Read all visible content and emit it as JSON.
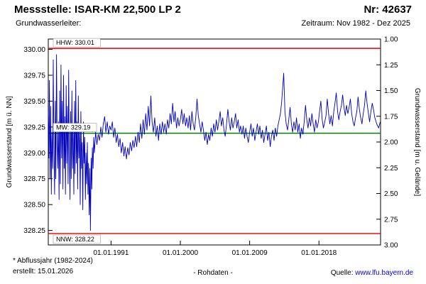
{
  "header": {
    "title": "Messstelle: ISAR-KM 22,500 LP 2",
    "number_label": "Nr: 42637",
    "aquifer_label": "Grundwasserleiter:",
    "period_label": "Zeitraum: Nov 1982 - Dez 2025"
  },
  "footer": {
    "note": "* Abflussjahr (1982-2024)",
    "created": "erstellt: 15.01.2026",
    "center": "- Rohdaten -",
    "source_label": "Quelle: ",
    "source_link": "www.lfu.bayern.de"
  },
  "colors": {
    "series": "#0000bb",
    "extreme_line": "#e00000",
    "mean_line": "#008000",
    "link": "#0000dd",
    "border": "#000000"
  },
  "chart_data": {
    "type": "line",
    "title": "",
    "xlabel": "",
    "ylabel_left": "Grundwasserstand [m ü. NN]",
    "ylabel_right": "Grundwasserstand [m u. Gelände]",
    "xlim": [
      1982.85,
      2026.0
    ],
    "ylim_left": [
      328.11,
      330.1
    ],
    "ylim_right_top": 1.0,
    "ylim_right_bottom": 3.0,
    "grid": false,
    "legend": "none",
    "yticks_left": [
      {
        "v": 330.0,
        "label": "330.00"
      },
      {
        "v": 329.75,
        "label": "329.75"
      },
      {
        "v": 329.5,
        "label": "329.50"
      },
      {
        "v": 329.25,
        "label": "329.25"
      },
      {
        "v": 329.0,
        "label": "329.00"
      },
      {
        "v": 328.75,
        "label": "328.75"
      },
      {
        "v": 328.5,
        "label": "328.50"
      },
      {
        "v": 328.25,
        "label": "328.25"
      }
    ],
    "yticks_right": [
      {
        "v": 1.0,
        "label": "1.00"
      },
      {
        "v": 1.25,
        "label": "1.25"
      },
      {
        "v": 1.5,
        "label": "1.50"
      },
      {
        "v": 1.75,
        "label": "1.75"
      },
      {
        "v": 2.0,
        "label": "2.00"
      },
      {
        "v": 2.25,
        "label": "2.25"
      },
      {
        "v": 2.5,
        "label": "2.50"
      },
      {
        "v": 2.75,
        "label": "2.75"
      },
      {
        "v": 3.0,
        "label": "3.00"
      }
    ],
    "xticks": [
      {
        "v": 1991.0,
        "label": "01.01.1991"
      },
      {
        "v": 2000.0,
        "label": "01.01.2000"
      },
      {
        "v": 2009.0,
        "label": "01.01.2009"
      },
      {
        "v": 2018.0,
        "label": "01.01.2018"
      }
    ],
    "ref_lines": [
      {
        "label": "HHW: 330.01",
        "v": 330.01,
        "color": "#e00000",
        "label_pos": "above"
      },
      {
        "label": "MW: 329.19",
        "v": 329.19,
        "color": "#008000",
        "label_pos": "above"
      },
      {
        "label": "NNW: 328.22",
        "v": 328.22,
        "color": "#e00000",
        "label_pos": "below"
      }
    ],
    "series_name": "Rohdaten",
    "points": [
      [
        1982.85,
        329.4
      ],
      [
        1982.92,
        328.95
      ],
      [
        1983.0,
        329.7
      ],
      [
        1983.08,
        328.75
      ],
      [
        1983.17,
        329.45
      ],
      [
        1983.25,
        328.6
      ],
      [
        1983.33,
        329.2
      ],
      [
        1983.42,
        328.85
      ],
      [
        1983.5,
        329.9
      ],
      [
        1983.58,
        329.05
      ],
      [
        1983.67,
        328.6
      ],
      [
        1983.75,
        329.5
      ],
      [
        1983.83,
        328.75
      ],
      [
        1983.92,
        329.95
      ],
      [
        1984.0,
        329.1
      ],
      [
        1984.08,
        328.85
      ],
      [
        1984.17,
        329.3
      ],
      [
        1984.25,
        328.55
      ],
      [
        1984.33,
        329.6
      ],
      [
        1984.42,
        328.7
      ],
      [
        1984.5,
        329.85
      ],
      [
        1984.58,
        328.95
      ],
      [
        1984.67,
        329.5
      ],
      [
        1984.75,
        328.65
      ],
      [
        1984.83,
        329.75
      ],
      [
        1984.92,
        328.85
      ],
      [
        1985.0,
        329.35
      ],
      [
        1985.08,
        328.6
      ],
      [
        1985.17,
        329.65
      ],
      [
        1985.25,
        328.9
      ],
      [
        1985.33,
        329.45
      ],
      [
        1985.42,
        328.7
      ],
      [
        1985.5,
        329.8
      ],
      [
        1985.58,
        329.0
      ],
      [
        1985.67,
        328.55
      ],
      [
        1985.75,
        329.4
      ],
      [
        1985.83,
        328.75
      ],
      [
        1985.92,
        329.6
      ],
      [
        1986.0,
        328.85
      ],
      [
        1986.08,
        329.25
      ],
      [
        1986.17,
        328.6
      ],
      [
        1986.25,
        329.5
      ],
      [
        1986.33,
        328.8
      ],
      [
        1986.42,
        329.7
      ],
      [
        1986.5,
        328.9
      ],
      [
        1986.58,
        329.3
      ],
      [
        1986.67,
        328.65
      ],
      [
        1986.75,
        329.55
      ],
      [
        1986.83,
        328.95
      ],
      [
        1986.92,
        329.2
      ],
      [
        1987.0,
        328.5
      ],
      [
        1987.08,
        329.4
      ],
      [
        1987.17,
        328.85
      ],
      [
        1987.25,
        329.1
      ],
      [
        1987.33,
        328.45
      ],
      [
        1987.42,
        329.3
      ],
      [
        1987.5,
        328.9
      ],
      [
        1987.58,
        329.15
      ],
      [
        1987.67,
        328.55
      ],
      [
        1987.75,
        329.0
      ],
      [
        1987.83,
        328.7
      ],
      [
        1987.92,
        329.1
      ],
      [
        1988.0,
        328.6
      ],
      [
        1988.08,
        328.9
      ],
      [
        1988.17,
        328.4
      ],
      [
        1988.25,
        328.85
      ],
      [
        1988.33,
        328.25
      ],
      [
        1988.42,
        328.95
      ],
      [
        1988.5,
        328.65
      ],
      [
        1988.58,
        329.05
      ],
      [
        1988.67,
        328.85
      ],
      [
        1988.75,
        329.15
      ],
      [
        1988.83,
        329.0
      ],
      [
        1988.92,
        329.1
      ],
      [
        1989.0,
        329.2
      ],
      [
        1989.17,
        329.08
      ],
      [
        1989.33,
        329.18
      ],
      [
        1989.5,
        329.12
      ],
      [
        1989.67,
        329.25
      ],
      [
        1989.83,
        329.15
      ],
      [
        1990.0,
        329.28
      ],
      [
        1990.17,
        329.35
      ],
      [
        1990.33,
        329.2
      ],
      [
        1990.5,
        329.3
      ],
      [
        1990.67,
        329.18
      ],
      [
        1990.83,
        329.26
      ],
      [
        1991.0,
        329.22
      ],
      [
        1991.17,
        329.3
      ],
      [
        1991.33,
        329.15
      ],
      [
        1991.5,
        329.24
      ],
      [
        1991.67,
        329.1
      ],
      [
        1991.83,
        329.18
      ],
      [
        1992.0,
        329.06
      ],
      [
        1992.17,
        329.14
      ],
      [
        1992.33,
        329.0
      ],
      [
        1992.5,
        329.1
      ],
      [
        1992.67,
        328.97
      ],
      [
        1992.83,
        329.06
      ],
      [
        1993.0,
        328.94
      ],
      [
        1993.17,
        329.05
      ],
      [
        1993.33,
        328.98
      ],
      [
        1993.5,
        329.1
      ],
      [
        1993.67,
        329.02
      ],
      [
        1993.83,
        329.12
      ],
      [
        1994.0,
        329.05
      ],
      [
        1994.17,
        329.16
      ],
      [
        1994.33,
        329.06
      ],
      [
        1994.5,
        329.2
      ],
      [
        1994.67,
        329.1
      ],
      [
        1994.83,
        329.28
      ],
      [
        1995.0,
        329.14
      ],
      [
        1995.17,
        329.32
      ],
      [
        1995.33,
        329.18
      ],
      [
        1995.5,
        329.38
      ],
      [
        1995.67,
        329.22
      ],
      [
        1995.83,
        329.45
      ],
      [
        1996.0,
        329.26
      ],
      [
        1996.17,
        329.55
      ],
      [
        1996.33,
        329.3
      ],
      [
        1996.5,
        329.2
      ],
      [
        1996.67,
        329.34
      ],
      [
        1996.83,
        329.16
      ],
      [
        1997.0,
        329.26
      ],
      [
        1997.17,
        329.12
      ],
      [
        1997.33,
        329.28
      ],
      [
        1997.5,
        329.18
      ],
      [
        1997.67,
        329.3
      ],
      [
        1997.83,
        329.2
      ],
      [
        1998.0,
        329.28
      ],
      [
        1998.17,
        329.18
      ],
      [
        1998.33,
        329.32
      ],
      [
        1998.5,
        329.24
      ],
      [
        1998.67,
        329.38
      ],
      [
        1998.83,
        329.28
      ],
      [
        1999.0,
        329.48
      ],
      [
        1999.17,
        329.3
      ],
      [
        1999.33,
        329.4
      ],
      [
        1999.5,
        329.24
      ],
      [
        1999.67,
        329.34
      ],
      [
        1999.83,
        329.26
      ],
      [
        2000.0,
        329.32
      ],
      [
        2000.17,
        329.42
      ],
      [
        2000.33,
        329.28
      ],
      [
        2000.5,
        329.38
      ],
      [
        2000.67,
        329.26
      ],
      [
        2000.83,
        329.34
      ],
      [
        2001.0,
        329.24
      ],
      [
        2001.17,
        329.36
      ],
      [
        2001.33,
        329.22
      ],
      [
        2001.5,
        329.4
      ],
      [
        2001.67,
        329.28
      ],
      [
        2001.83,
        329.22
      ],
      [
        2002.0,
        329.34
      ],
      [
        2002.17,
        329.52
      ],
      [
        2002.33,
        329.36
      ],
      [
        2002.5,
        329.28
      ],
      [
        2002.67,
        329.2
      ],
      [
        2002.83,
        329.3
      ],
      [
        2003.0,
        329.22
      ],
      [
        2003.17,
        329.12
      ],
      [
        2003.33,
        329.2
      ],
      [
        2003.5,
        329.08
      ],
      [
        2003.67,
        329.18
      ],
      [
        2003.83,
        329.12
      ],
      [
        2004.0,
        329.24
      ],
      [
        2004.17,
        329.16
      ],
      [
        2004.33,
        329.28
      ],
      [
        2004.5,
        329.2
      ],
      [
        2004.67,
        329.32
      ],
      [
        2004.83,
        329.22
      ],
      [
        2005.0,
        329.3
      ],
      [
        2005.17,
        329.4
      ],
      [
        2005.33,
        329.26
      ],
      [
        2005.5,
        329.34
      ],
      [
        2005.67,
        329.22
      ],
      [
        2005.83,
        329.16
      ],
      [
        2006.0,
        329.28
      ],
      [
        2006.17,
        329.42
      ],
      [
        2006.33,
        329.3
      ],
      [
        2006.5,
        329.22
      ],
      [
        2006.67,
        329.34
      ],
      [
        2006.83,
        329.24
      ],
      [
        2007.0,
        329.3
      ],
      [
        2007.17,
        329.38
      ],
      [
        2007.33,
        329.24
      ],
      [
        2007.5,
        329.32
      ],
      [
        2007.67,
        329.2
      ],
      [
        2007.83,
        329.26
      ],
      [
        2008.0,
        329.18
      ],
      [
        2008.17,
        329.26
      ],
      [
        2008.33,
        329.14
      ],
      [
        2008.5,
        329.24
      ],
      [
        2008.67,
        329.16
      ],
      [
        2008.83,
        329.1
      ],
      [
        2009.0,
        329.2
      ],
      [
        2009.17,
        329.28
      ],
      [
        2009.33,
        329.16
      ],
      [
        2009.5,
        329.24
      ],
      [
        2009.67,
        329.12
      ],
      [
        2009.83,
        329.2
      ],
      [
        2010.0,
        329.28
      ],
      [
        2010.17,
        329.18
      ],
      [
        2010.33,
        329.26
      ],
      [
        2010.5,
        329.14
      ],
      [
        2010.67,
        329.22
      ],
      [
        2010.83,
        329.1
      ],
      [
        2011.0,
        329.18
      ],
      [
        2011.17,
        329.26
      ],
      [
        2011.33,
        329.12
      ],
      [
        2011.5,
        329.2
      ],
      [
        2011.67,
        329.06
      ],
      [
        2011.83,
        329.16
      ],
      [
        2012.0,
        329.22
      ],
      [
        2012.17,
        329.12
      ],
      [
        2012.33,
        329.24
      ],
      [
        2012.5,
        329.16
      ],
      [
        2012.67,
        329.26
      ],
      [
        2012.83,
        329.32
      ],
      [
        2013.0,
        329.38
      ],
      [
        2013.17,
        329.5
      ],
      [
        2013.42,
        329.77
      ],
      [
        2013.58,
        329.4
      ],
      [
        2013.75,
        329.28
      ],
      [
        2013.92,
        329.22
      ],
      [
        2014.08,
        329.32
      ],
      [
        2014.25,
        329.44
      ],
      [
        2014.42,
        329.28
      ],
      [
        2014.58,
        329.2
      ],
      [
        2014.75,
        329.3
      ],
      [
        2014.92,
        329.22
      ],
      [
        2015.08,
        329.34
      ],
      [
        2015.25,
        329.2
      ],
      [
        2015.42,
        329.28
      ],
      [
        2015.58,
        329.14
      ],
      [
        2015.75,
        329.24
      ],
      [
        2015.92,
        329.18
      ],
      [
        2016.08,
        329.3
      ],
      [
        2016.25,
        329.46
      ],
      [
        2016.42,
        329.32
      ],
      [
        2016.58,
        329.24
      ],
      [
        2016.75,
        329.34
      ],
      [
        2016.92,
        329.26
      ],
      [
        2017.08,
        329.38
      ],
      [
        2017.25,
        329.28
      ],
      [
        2017.42,
        329.2
      ],
      [
        2017.58,
        329.32
      ],
      [
        2017.75,
        329.24
      ],
      [
        2017.92,
        329.3
      ],
      [
        2018.08,
        329.4
      ],
      [
        2018.25,
        329.5
      ],
      [
        2018.42,
        329.32
      ],
      [
        2018.58,
        329.24
      ],
      [
        2018.75,
        329.3
      ],
      [
        2018.92,
        329.36
      ],
      [
        2019.08,
        329.52
      ],
      [
        2019.25,
        329.38
      ],
      [
        2019.42,
        329.28
      ],
      [
        2019.58,
        329.36
      ],
      [
        2019.75,
        329.26
      ],
      [
        2019.92,
        329.4
      ],
      [
        2020.08,
        329.48
      ],
      [
        2020.25,
        329.58
      ],
      [
        2020.42,
        329.4
      ],
      [
        2020.58,
        329.32
      ],
      [
        2020.75,
        329.4
      ],
      [
        2020.92,
        329.46
      ],
      [
        2021.08,
        329.56
      ],
      [
        2021.25,
        329.44
      ],
      [
        2021.42,
        329.36
      ],
      [
        2021.58,
        329.46
      ],
      [
        2021.75,
        329.38
      ],
      [
        2021.92,
        329.44
      ],
      [
        2022.08,
        329.52
      ],
      [
        2022.25,
        329.38
      ],
      [
        2022.42,
        329.3
      ],
      [
        2022.58,
        329.26
      ],
      [
        2022.75,
        329.34
      ],
      [
        2022.92,
        329.4
      ],
      [
        2023.08,
        329.54
      ],
      [
        2023.25,
        329.42
      ],
      [
        2023.42,
        329.34
      ],
      [
        2023.58,
        329.28
      ],
      [
        2023.75,
        329.38
      ],
      [
        2023.92,
        329.46
      ],
      [
        2024.08,
        329.6
      ],
      [
        2024.25,
        329.48
      ],
      [
        2024.42,
        329.38
      ],
      [
        2024.58,
        329.3
      ],
      [
        2024.75,
        329.4
      ],
      [
        2024.92,
        329.48
      ],
      [
        2025.08,
        329.42
      ],
      [
        2025.25,
        329.34
      ],
      [
        2025.5,
        329.28
      ],
      [
        2025.75,
        329.24
      ],
      [
        2025.95,
        329.3
      ]
    ]
  }
}
